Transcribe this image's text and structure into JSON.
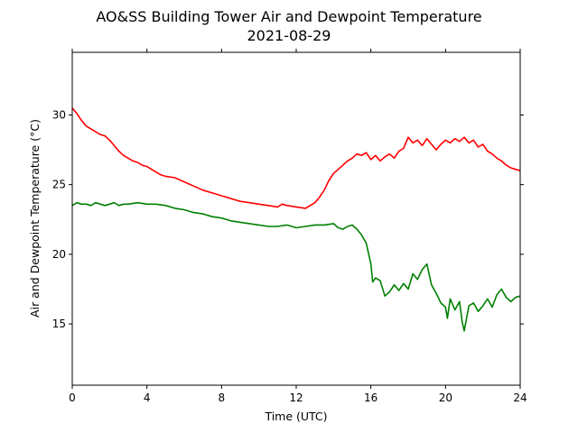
{
  "chart_data": {
    "type": "line",
    "title": "AO&SS Building Tower Air and Dewpoint Temperature",
    "subtitle": "2021-08-29",
    "xlabel": "Time (UTC)",
    "ylabel": "Air and Dewpoint Temperature (°C)",
    "xlim": [
      0,
      24
    ],
    "ylim": [
      10.6,
      34.5
    ],
    "xticks": [
      0,
      4,
      8,
      12,
      16,
      20,
      24
    ],
    "yticks": [
      15,
      20,
      25,
      30
    ],
    "grid": false,
    "legend": "none",
    "series": [
      {
        "color": "#ff0000",
        "x": [
          0,
          0.25,
          0.5,
          0.75,
          1.0,
          1.25,
          1.5,
          1.75,
          2.0,
          2.25,
          2.5,
          2.75,
          3.0,
          3.25,
          3.5,
          3.75,
          4.0,
          4.25,
          4.5,
          4.75,
          5.0,
          5.5,
          6.0,
          6.5,
          7.0,
          7.5,
          8.0,
          8.5,
          9.0,
          9.5,
          10.0,
          10.5,
          11.0,
          11.25,
          11.5,
          12.0,
          12.5,
          12.75,
          13.0,
          13.25,
          13.5,
          13.75,
          14.0,
          14.25,
          14.5,
          14.75,
          15.0,
          15.25,
          15.5,
          15.75,
          16.0,
          16.25,
          16.5,
          16.75,
          17.0,
          17.25,
          17.5,
          17.75,
          18.0,
          18.25,
          18.5,
          18.75,
          19.0,
          19.25,
          19.5,
          19.75,
          20.0,
          20.25,
          20.5,
          20.75,
          21.0,
          21.25,
          21.5,
          21.75,
          22.0,
          22.25,
          22.5,
          22.75,
          23.0,
          23.25,
          23.5,
          23.75,
          24.0
        ],
        "y": [
          30.5,
          30.1,
          29.6,
          29.2,
          29.0,
          28.8,
          28.6,
          28.5,
          28.2,
          27.8,
          27.4,
          27.1,
          26.9,
          26.7,
          26.6,
          26.4,
          26.3,
          26.1,
          25.9,
          25.7,
          25.6,
          25.5,
          25.2,
          24.9,
          24.6,
          24.4,
          24.2,
          24.0,
          23.8,
          23.7,
          23.6,
          23.5,
          23.4,
          23.6,
          23.5,
          23.4,
          23.3,
          23.5,
          23.7,
          24.1,
          24.6,
          25.3,
          25.8,
          26.1,
          26.4,
          26.7,
          26.9,
          27.2,
          27.1,
          27.3,
          26.8,
          27.1,
          26.7,
          27.0,
          27.2,
          26.9,
          27.4,
          27.6,
          28.4,
          28.0,
          28.2,
          27.8,
          28.3,
          27.9,
          27.5,
          27.9,
          28.2,
          28.0,
          28.3,
          28.1,
          28.4,
          28.0,
          28.2,
          27.7,
          27.9,
          27.4,
          27.2,
          26.9,
          26.7,
          26.4,
          26.2,
          26.1,
          26.0
        ]
      },
      {
        "color": "#008000",
        "x": [
          0,
          0.25,
          0.5,
          0.75,
          1.0,
          1.25,
          1.5,
          1.75,
          2.0,
          2.25,
          2.5,
          2.75,
          3.0,
          3.5,
          4.0,
          4.5,
          5.0,
          5.5,
          6.0,
          6.5,
          7.0,
          7.5,
          8.0,
          8.5,
          9.0,
          9.5,
          10.0,
          10.5,
          11.0,
          11.5,
          12.0,
          12.5,
          13.0,
          13.5,
          14.0,
          14.25,
          14.5,
          14.75,
          15.0,
          15.25,
          15.5,
          15.75,
          16.0,
          16.1,
          16.25,
          16.5,
          16.75,
          17.0,
          17.25,
          17.5,
          17.75,
          18.0,
          18.25,
          18.5,
          18.75,
          19.0,
          19.25,
          19.5,
          19.75,
          20.0,
          20.1,
          20.25,
          20.5,
          20.75,
          20.9,
          21.0,
          21.25,
          21.5,
          21.75,
          22.0,
          22.25,
          22.5,
          22.75,
          23.0,
          23.25,
          23.5,
          23.75,
          24.0
        ],
        "y": [
          23.5,
          23.7,
          23.6,
          23.6,
          23.5,
          23.7,
          23.6,
          23.5,
          23.6,
          23.7,
          23.5,
          23.6,
          23.6,
          23.7,
          23.6,
          23.6,
          23.5,
          23.3,
          23.2,
          23.0,
          22.9,
          22.7,
          22.6,
          22.4,
          22.3,
          22.2,
          22.1,
          22.0,
          22.0,
          22.1,
          21.9,
          22.0,
          22.1,
          22.1,
          22.2,
          21.9,
          21.8,
          22.0,
          22.1,
          21.8,
          21.4,
          20.8,
          19.3,
          18.0,
          18.3,
          18.1,
          17.0,
          17.3,
          17.8,
          17.4,
          17.9,
          17.5,
          18.6,
          18.2,
          18.9,
          19.3,
          17.8,
          17.2,
          16.5,
          16.2,
          15.4,
          16.8,
          16.0,
          16.6,
          15.1,
          14.5,
          16.3,
          16.5,
          15.9,
          16.3,
          16.8,
          16.2,
          17.1,
          17.5,
          16.9,
          16.6,
          16.9,
          17.0
        ]
      }
    ]
  }
}
